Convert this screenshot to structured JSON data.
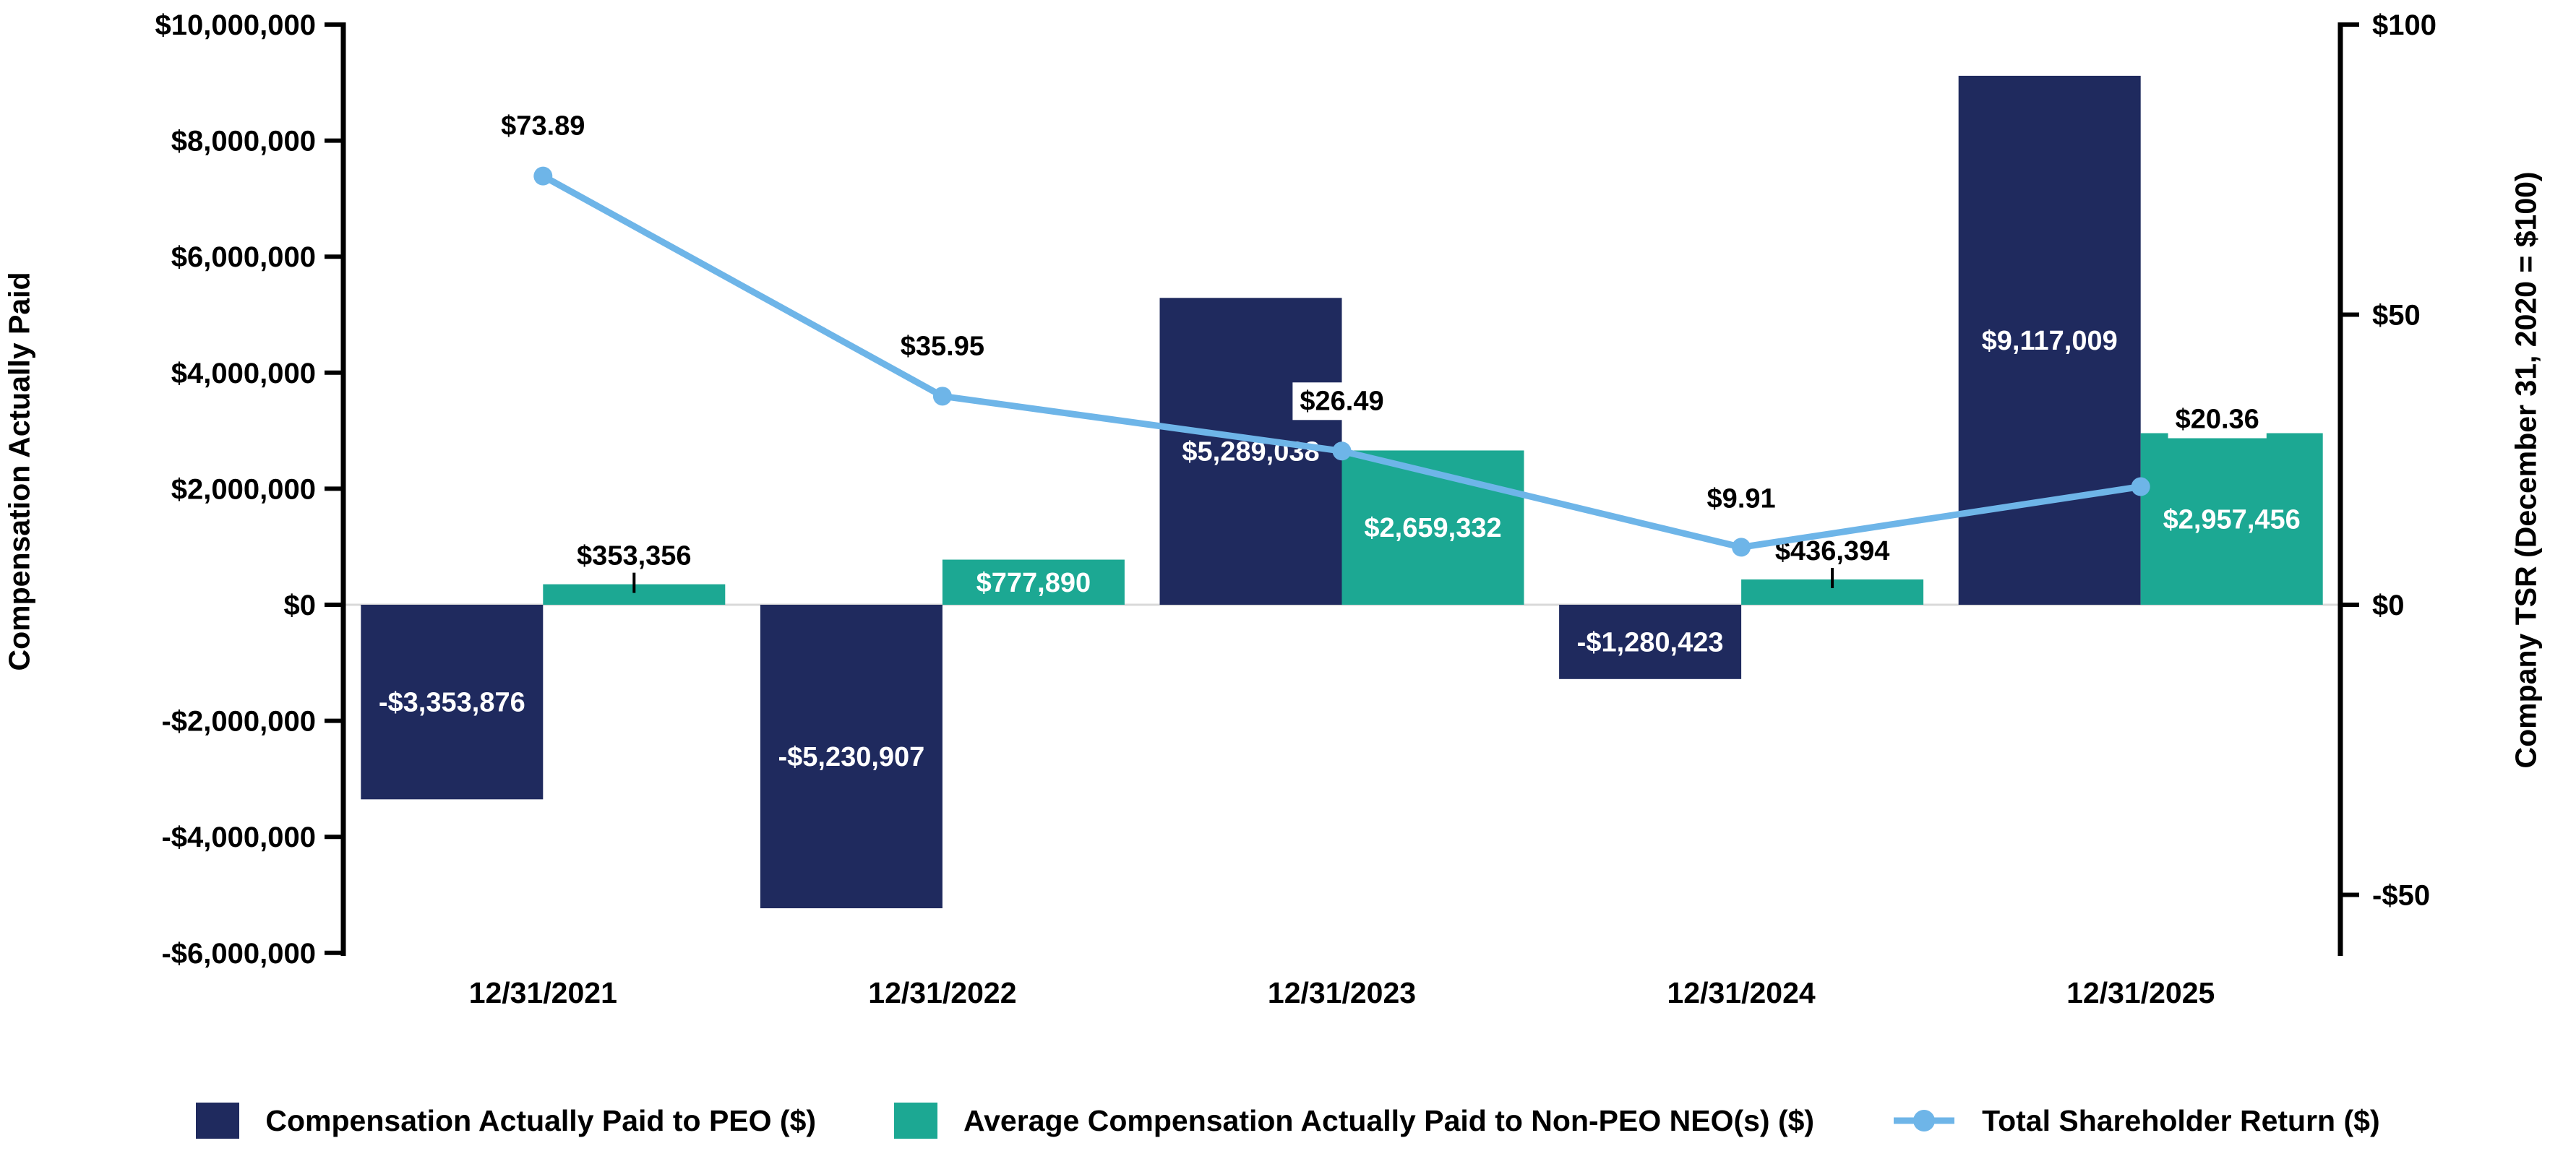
{
  "chart_data": {
    "type": "combo",
    "categories": [
      "12/31/2021",
      "12/31/2022",
      "12/31/2023",
      "12/31/2024",
      "12/31/2025"
    ],
    "series": [
      {
        "name": "Compensation Actually Paid to PEO ($)",
        "type": "bar",
        "axis": "left",
        "color": "#1f2a5e",
        "values": [
          -3353876,
          -5230907,
          5289038,
          -1280423,
          9117009
        ],
        "labels": [
          "-$3,353,876",
          "-$5,230,907",
          "$5,289,038",
          "-$1,280,423",
          "$9,117,009"
        ]
      },
      {
        "name": "Average Compensation Actually Paid to Non-PEO NEO(s) ($)",
        "type": "bar",
        "axis": "left",
        "color": "#1ca893",
        "values": [
          353356,
          777890,
          2659332,
          436394,
          2957456
        ],
        "labels": [
          "$353,356",
          "$777,890",
          "$2,659,332",
          "$436,394",
          "$2,957,456"
        ]
      },
      {
        "name": "Total Shareholder Return ($)",
        "type": "line",
        "axis": "right",
        "color": "#6eb5e8",
        "values": [
          73.89,
          35.95,
          26.49,
          9.91,
          20.36
        ],
        "labels": [
          "$73.89",
          "$35.95",
          "$26.49",
          "$9.91",
          "$20.36"
        ],
        "label_dx": [
          0,
          0,
          0,
          0,
          106
        ],
        "label_dy": [
          -70,
          -70,
          -70,
          -68,
          -94
        ]
      }
    ],
    "axes": {
      "left": {
        "title": "Compensation Actually Paid",
        "min": -6000000,
        "max": 10000000,
        "ticks": [
          {
            "v": 10000000,
            "label": "$10,000,000"
          },
          {
            "v": 8000000,
            "label": "$8,000,000"
          },
          {
            "v": 6000000,
            "label": "$6,000,000"
          },
          {
            "v": 4000000,
            "label": "$4,000,000"
          },
          {
            "v": 2000000,
            "label": "$2,000,000"
          },
          {
            "v": 0,
            "label": "$0"
          },
          {
            "v": -2000000,
            "label": "-$2,000,000"
          },
          {
            "v": -4000000,
            "label": "-$4,000,000"
          },
          {
            "v": -6000000,
            "label": "-$6,000,000"
          }
        ]
      },
      "right": {
        "title": "Company TSR (December 31, 2020 = $100)",
        "min": -60,
        "max": 100,
        "ticks": [
          {
            "v": 100,
            "label": "$100"
          },
          {
            "v": 50,
            "label": "$50"
          },
          {
            "v": 0,
            "label": "$0"
          },
          {
            "v": -50,
            "label": "-$50"
          }
        ]
      }
    },
    "grid": "zero-line-only",
    "zero_line_color": "#d9d9d9",
    "legend_position": "bottom"
  }
}
